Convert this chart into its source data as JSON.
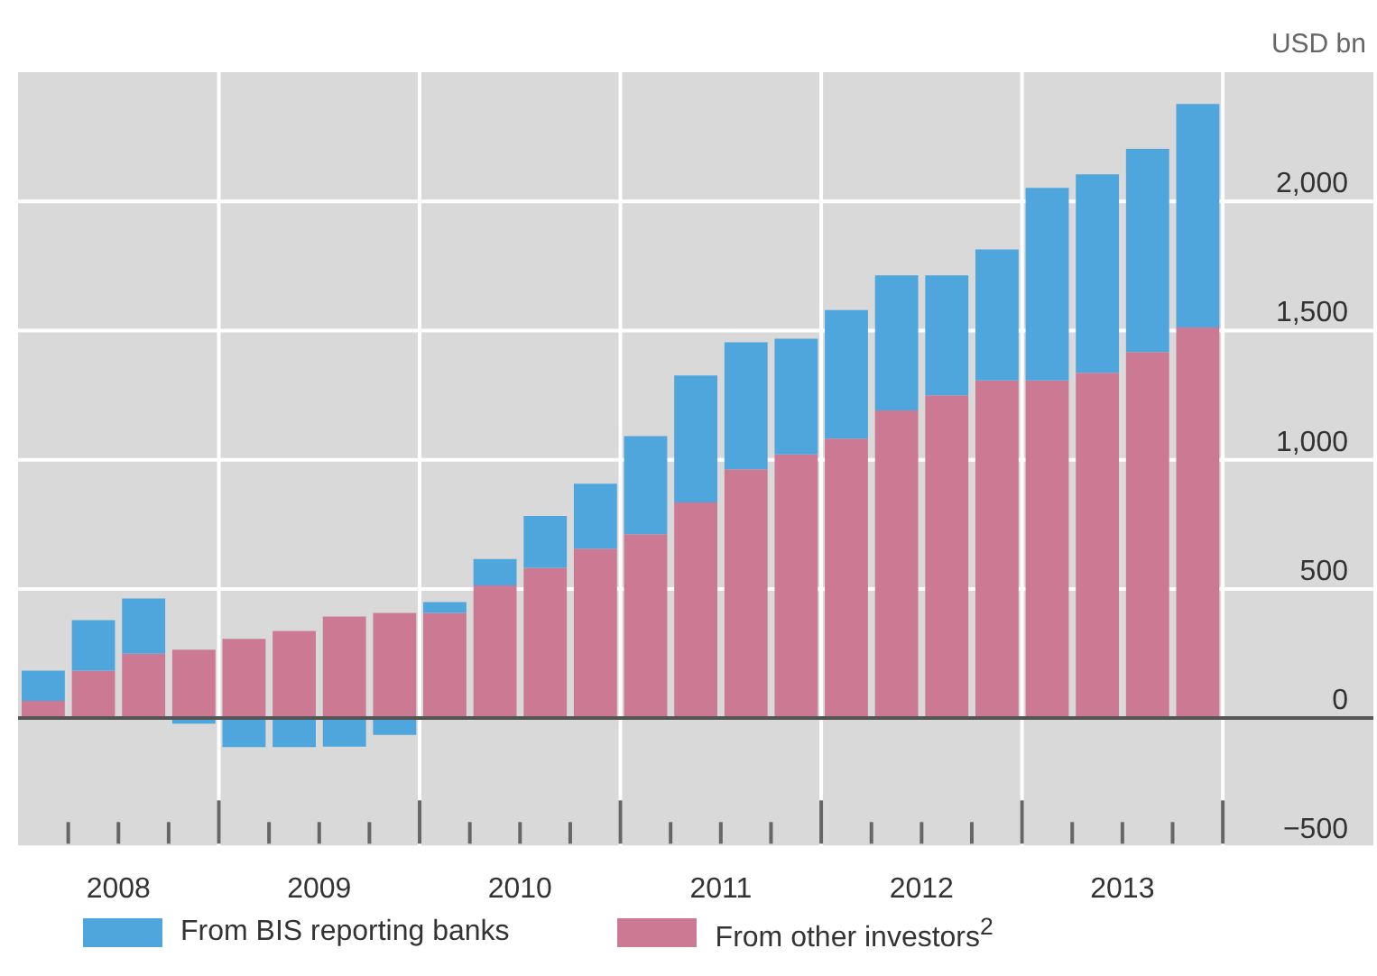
{
  "chart_data": {
    "type": "bar",
    "ylabel": "USD bn",
    "stacked": true,
    "x": [
      2008.125,
      2008.375,
      2008.625,
      2008.875,
      2009.125,
      2009.375,
      2009.625,
      2009.875,
      2010.125,
      2010.375,
      2010.625,
      2010.875,
      2011.125,
      2011.375,
      2011.625,
      2011.875,
      2012.125,
      2012.375,
      2012.625,
      2012.875,
      2013.125,
      2013.375,
      2013.625,
      2013.875
    ],
    "series": [
      {
        "name": "From other investors$^{2}$",
        "color": "#cc7a94",
        "values": [
          67,
          184,
          249,
          265,
          307,
          337,
          393,
          407,
          407,
          514,
          582,
          656,
          712,
          835,
          963,
          1021,
          1082,
          1191,
          1249,
          1307,
          1307,
          1337,
          1417,
          1512
        ]
      },
      {
        "name": "From BIS reporting banks",
        "color": "#4ea6dc",
        "values": [
          117,
          195,
          214,
          -21,
          -112,
          -112,
          -110,
          -65,
          42,
          102,
          200,
          251,
          379,
          491,
          491,
          447,
          497,
          523,
          465,
          507,
          745,
          768,
          786,
          865
        ]
      }
    ],
    "xlim": [
      2008,
      2014.75
    ],
    "xticks": [
      {
        "value": 2008.25,
        "label": null
      },
      {
        "value": 2008.5,
        "label": "2008"
      },
      {
        "value": 2008.75,
        "label": null
      },
      {
        "value": 2009,
        "label": null
      },
      {
        "value": 2009.25,
        "label": null
      },
      {
        "value": 2009.5,
        "label": "2009"
      },
      {
        "value": 2009.75,
        "label": null
      },
      {
        "value": 2010,
        "label": null
      },
      {
        "value": 2010.25,
        "label": null
      },
      {
        "value": 2010.5,
        "label": "2010"
      },
      {
        "value": 2010.75,
        "label": null
      },
      {
        "value": 2011,
        "label": null
      },
      {
        "value": 2011.25,
        "label": null
      },
      {
        "value": 2011.5,
        "label": "2011"
      },
      {
        "value": 2011.75,
        "label": null
      },
      {
        "value": 2012,
        "label": null
      },
      {
        "value": 2012.25,
        "label": null
      },
      {
        "value": 2012.5,
        "label": "2012"
      },
      {
        "value": 2012.75,
        "label": null
      },
      {
        "value": 2013,
        "label": null
      },
      {
        "value": 2013.25,
        "label": null
      },
      {
        "value": 2013.5,
        "label": "2013"
      },
      {
        "value": 2013.75,
        "label": null
      },
      {
        "value": 2014,
        "label": null
      }
    ],
    "ylim": [
      -500,
      2500
    ],
    "yticks": [
      {
        "value": -500,
        "label": "−500"
      },
      0,
      500,
      {
        "value": 1000,
        "label": "1,000"
      },
      {
        "value": 1500,
        "label": "1,500"
      },
      {
        "value": 2000,
        "label": "2,000"
      }
    ],
    "ref_lines": [
      {
        "axis": "y",
        "value": 0,
        "color": "#555555"
      }
    ],
    "grid": true,
    "legend": "bottom"
  }
}
